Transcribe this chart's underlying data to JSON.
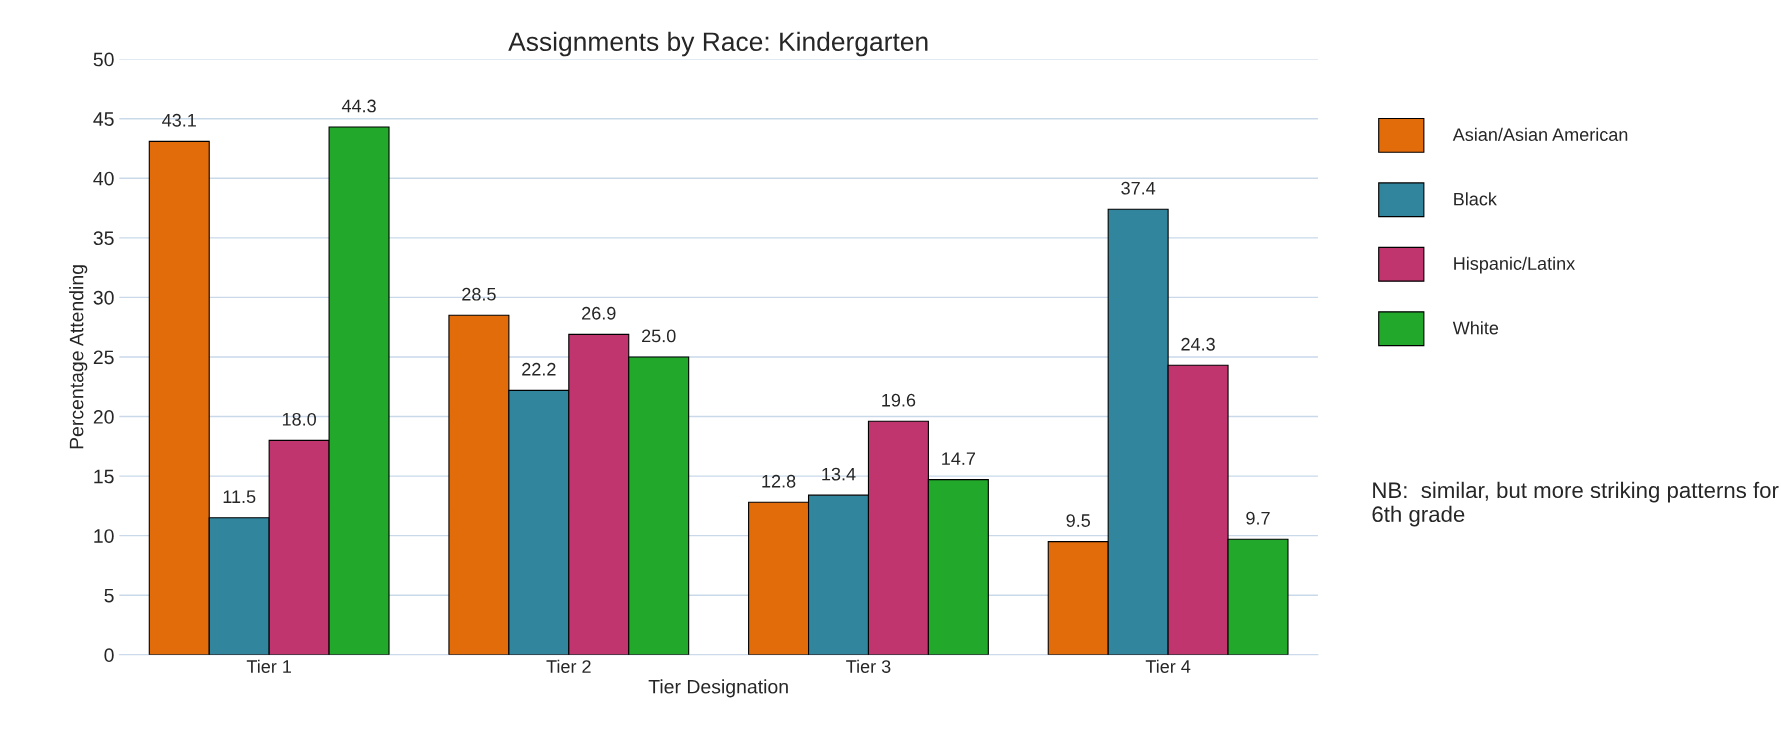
{
  "chart_data": {
    "type": "bar",
    "title": "Assignments by Race: Kindergarten",
    "xlabel": "Tier Designation",
    "ylabel": "Percentage Attending",
    "categories": [
      "Tier 1",
      "Tier 2",
      "Tier 3",
      "Tier 4"
    ],
    "series": [
      {
        "name": "Asian/Asian American",
        "color": "#e36c0a",
        "values": [
          43.1,
          28.5,
          12.8,
          9.5
        ],
        "value_labels": [
          "43.1",
          "28.5",
          "12.8",
          "9.5"
        ]
      },
      {
        "name": "Black",
        "color": "#31859c",
        "values": [
          11.5,
          22.2,
          13.4,
          37.4
        ],
        "value_labels": [
          "11.5",
          "22.2",
          "13.4",
          "37.4"
        ]
      },
      {
        "name": "Hispanic/Latinx",
        "color": "#c0356e",
        "values": [
          18.0,
          26.9,
          19.6,
          24.3
        ],
        "value_labels": [
          "18.0",
          "26.9",
          "19.6",
          "24.3"
        ]
      },
      {
        "name": "White",
        "color": "#22a82a",
        "values": [
          44.3,
          25.0,
          14.7,
          9.7
        ],
        "value_labels": [
          "44.3",
          "25.0",
          "14.7",
          "9.7"
        ]
      }
    ],
    "ylim": [
      0,
      50
    ],
    "yticks": [
      0,
      5,
      10,
      15,
      20,
      25,
      30,
      35,
      40,
      45,
      50
    ],
    "grid": "y",
    "legend": "right",
    "annotations": [
      "NB:  similar, but more striking patterns for 6th grade"
    ]
  }
}
